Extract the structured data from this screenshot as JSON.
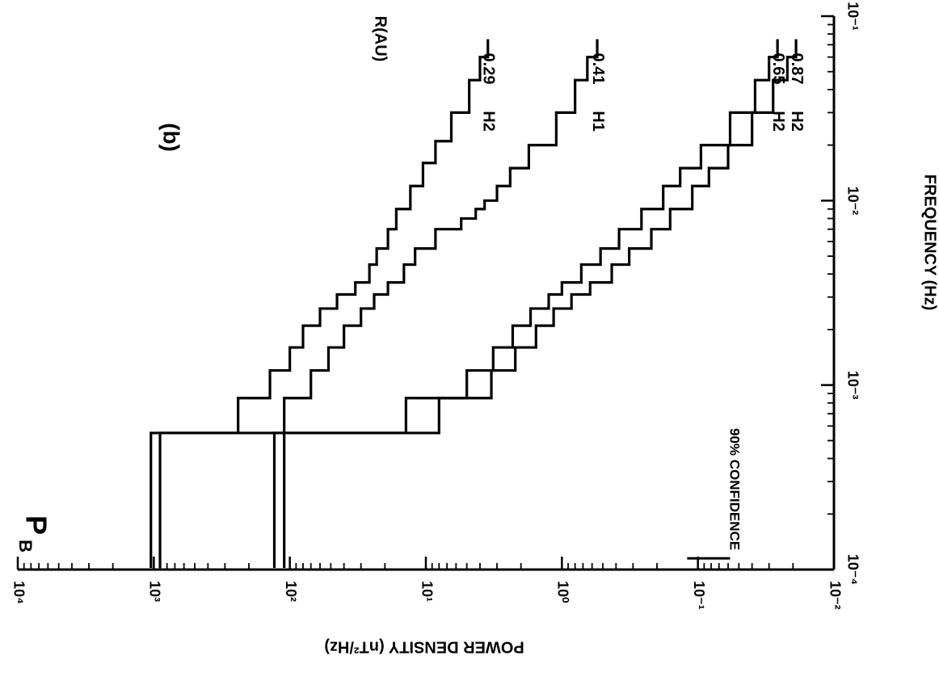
{
  "chart_data": {
    "type": "line",
    "orientation": "rotated 90 degrees (frequency axis runs top-to-bottom on the right edge)",
    "x_scale": "log",
    "y_scale": "log",
    "xlabel": "FREQUENCY (Hz)",
    "ylabel": "POWER DENSITY (nT²/Hz)",
    "xlim": [
      0.0001,
      0.1
    ],
    "ylim": [
      0.01,
      10000
    ],
    "x_ticks": [
      "10⁻⁴",
      "10⁻³",
      "10⁻²",
      "10⁻¹"
    ],
    "y_ticks": [
      "10⁴",
      "10³",
      "10²",
      "10¹",
      "10⁰",
      "10⁻¹",
      "10⁻²"
    ],
    "panel_label": "(b)",
    "component_label": "P",
    "component_subscript": "B",
    "distance_header": "R(AU)",
    "confidence_label": "90% CONFIDENCE",
    "confidence_interval": [
      0.058,
      0.12
    ],
    "series": [
      {
        "name": "H2",
        "distance": "0.29",
        "x": [
          0.00028,
          0.00055,
          0.00085,
          0.0012,
          0.0016,
          0.0021,
          0.0026,
          0.0031,
          0.0036,
          0.0045,
          0.0055,
          0.007,
          0.009,
          0.012,
          0.016,
          0.021,
          0.03,
          0.045,
          0.06,
          0.075
        ],
        "y": [
          1050,
          1050,
          240,
          140,
          100,
          80,
          60,
          45,
          33,
          26,
          23,
          19,
          16.5,
          13,
          10.5,
          8.5,
          6.5,
          4.8,
          4,
          3.5
        ]
      },
      {
        "name": "H1",
        "distance": "0.41",
        "x": [
          0.00028,
          0.00055,
          0.00085,
          0.0012,
          0.0016,
          0.0021,
          0.0026,
          0.0031,
          0.0036,
          0.0045,
          0.0055,
          0.007,
          0.008,
          0.009,
          0.01,
          0.012,
          0.015,
          0.02,
          0.03,
          0.045,
          0.06,
          0.075
        ],
        "y": [
          900,
          900,
          110,
          70,
          52,
          40,
          30,
          24,
          19,
          14.5,
          12,
          8.5,
          5.5,
          4.3,
          3.7,
          3,
          2.4,
          1.75,
          1.1,
          0.8,
          0.65,
          0.55
        ]
      },
      {
        "name": "H2",
        "distance": "0.65",
        "x": [
          0.00028,
          0.00055,
          0.00085,
          0.0012,
          0.0016,
          0.0021,
          0.0026,
          0.0031,
          0.0036,
          0.0045,
          0.0055,
          0.007,
          0.009,
          0.012,
          0.015,
          0.02,
          0.03,
          0.045,
          0.06,
          0.075
        ],
        "y": [
          130,
          130,
          14,
          5,
          3.2,
          2.3,
          1.7,
          1.25,
          1,
          0.72,
          0.52,
          0.38,
          0.26,
          0.18,
          0.135,
          0.095,
          0.058,
          0.038,
          0.03,
          0.026
        ]
      },
      {
        "name": "H2",
        "distance": "0.87",
        "x": [
          0.00028,
          0.00055,
          0.00085,
          0.0012,
          0.0016,
          0.0021,
          0.0026,
          0.0031,
          0.0036,
          0.0045,
          0.0055,
          0.007,
          0.009,
          0.012,
          0.015,
          0.02,
          0.03,
          0.045,
          0.06,
          0.075
        ],
        "y": [
          110,
          110,
          8,
          3.3,
          2.2,
          1.55,
          1.15,
          0.85,
          0.62,
          0.43,
          0.32,
          0.22,
          0.16,
          0.11,
          0.083,
          0.06,
          0.04,
          0.028,
          0.022,
          0.019
        ]
      }
    ]
  }
}
